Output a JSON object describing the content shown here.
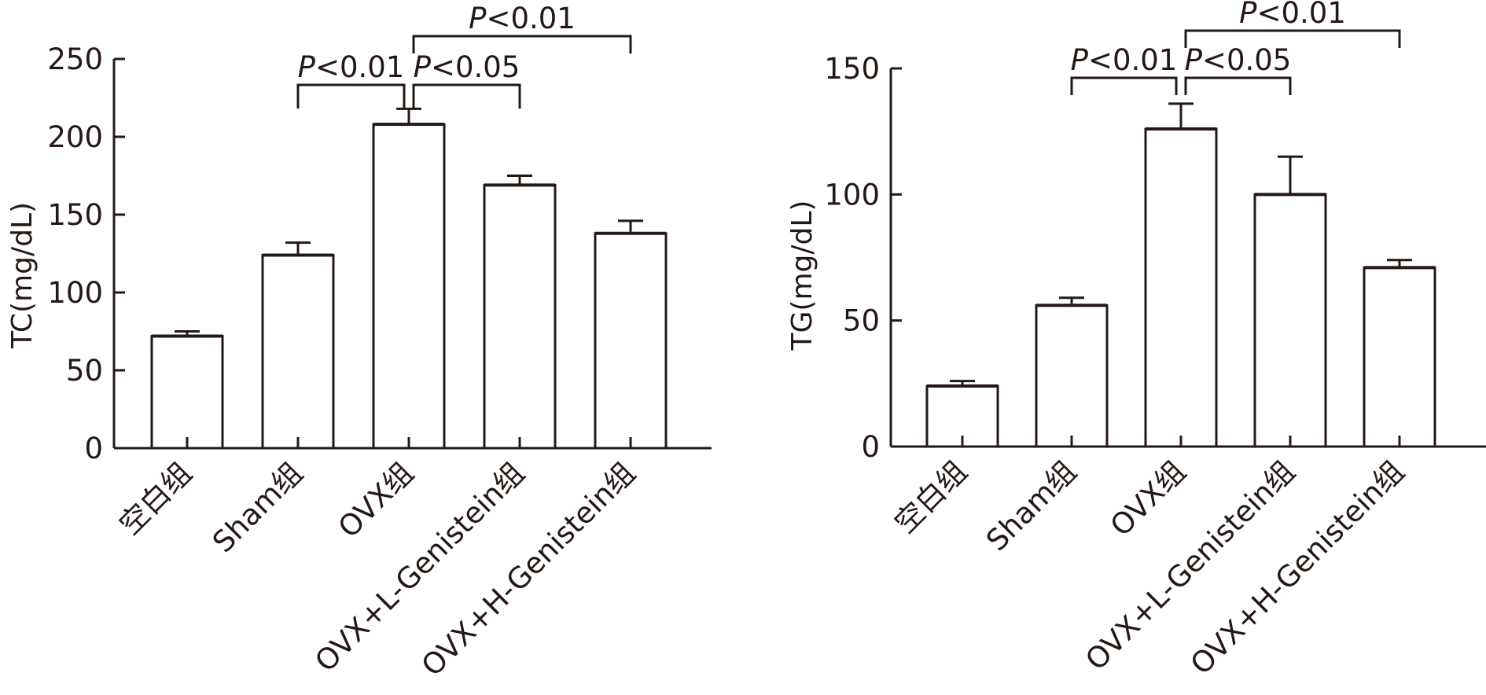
{
  "chart_data": [
    {
      "type": "bar",
      "title": "",
      "xlabel": "",
      "ylabel": "TC(mg/dL)",
      "ylim": [
        0,
        250
      ],
      "yticks": [
        0,
        50,
        100,
        150,
        200,
        250
      ],
      "categories": [
        "空白组",
        "Sham组",
        "OVX组",
        "OVX+L-Genistein组",
        "OVX+H-Genistein组"
      ],
      "values": [
        72,
        124,
        208,
        169,
        138
      ],
      "errors": [
        3,
        8,
        10,
        6,
        8
      ],
      "annotations": [
        {
          "from": 1,
          "to": 2,
          "label_p": "P",
          "label_rest": "<0.01"
        },
        {
          "from": 2,
          "to": 3,
          "label_p": "P",
          "label_rest": "<0.05"
        },
        {
          "from": 2,
          "to": 4,
          "label_p": "P",
          "label_rest": "<0.01"
        }
      ],
      "colors": {
        "bar_fill": "#ffffff",
        "stroke": "#231815"
      }
    },
    {
      "type": "bar",
      "title": "",
      "xlabel": "",
      "ylabel": "TG(mg/dL)",
      "ylim": [
        0,
        150
      ],
      "yticks": [
        0,
        50,
        100,
        150
      ],
      "categories": [
        "空白组",
        "Sham组",
        "OVX组",
        "OVX+L-Genistein组",
        "OVX+H-Genistein组"
      ],
      "values": [
        24,
        56,
        126,
        100,
        71
      ],
      "errors": [
        2,
        3,
        10,
        15,
        3
      ],
      "annotations": [
        {
          "from": 1,
          "to": 2,
          "label_p": "P",
          "label_rest": "<0.01"
        },
        {
          "from": 2,
          "to": 3,
          "label_p": "P",
          "label_rest": "<0.05"
        },
        {
          "from": 2,
          "to": 4,
          "label_p": "P",
          "label_rest": "<0.01"
        }
      ],
      "colors": {
        "bar_fill": "#ffffff",
        "stroke": "#231815"
      }
    }
  ]
}
